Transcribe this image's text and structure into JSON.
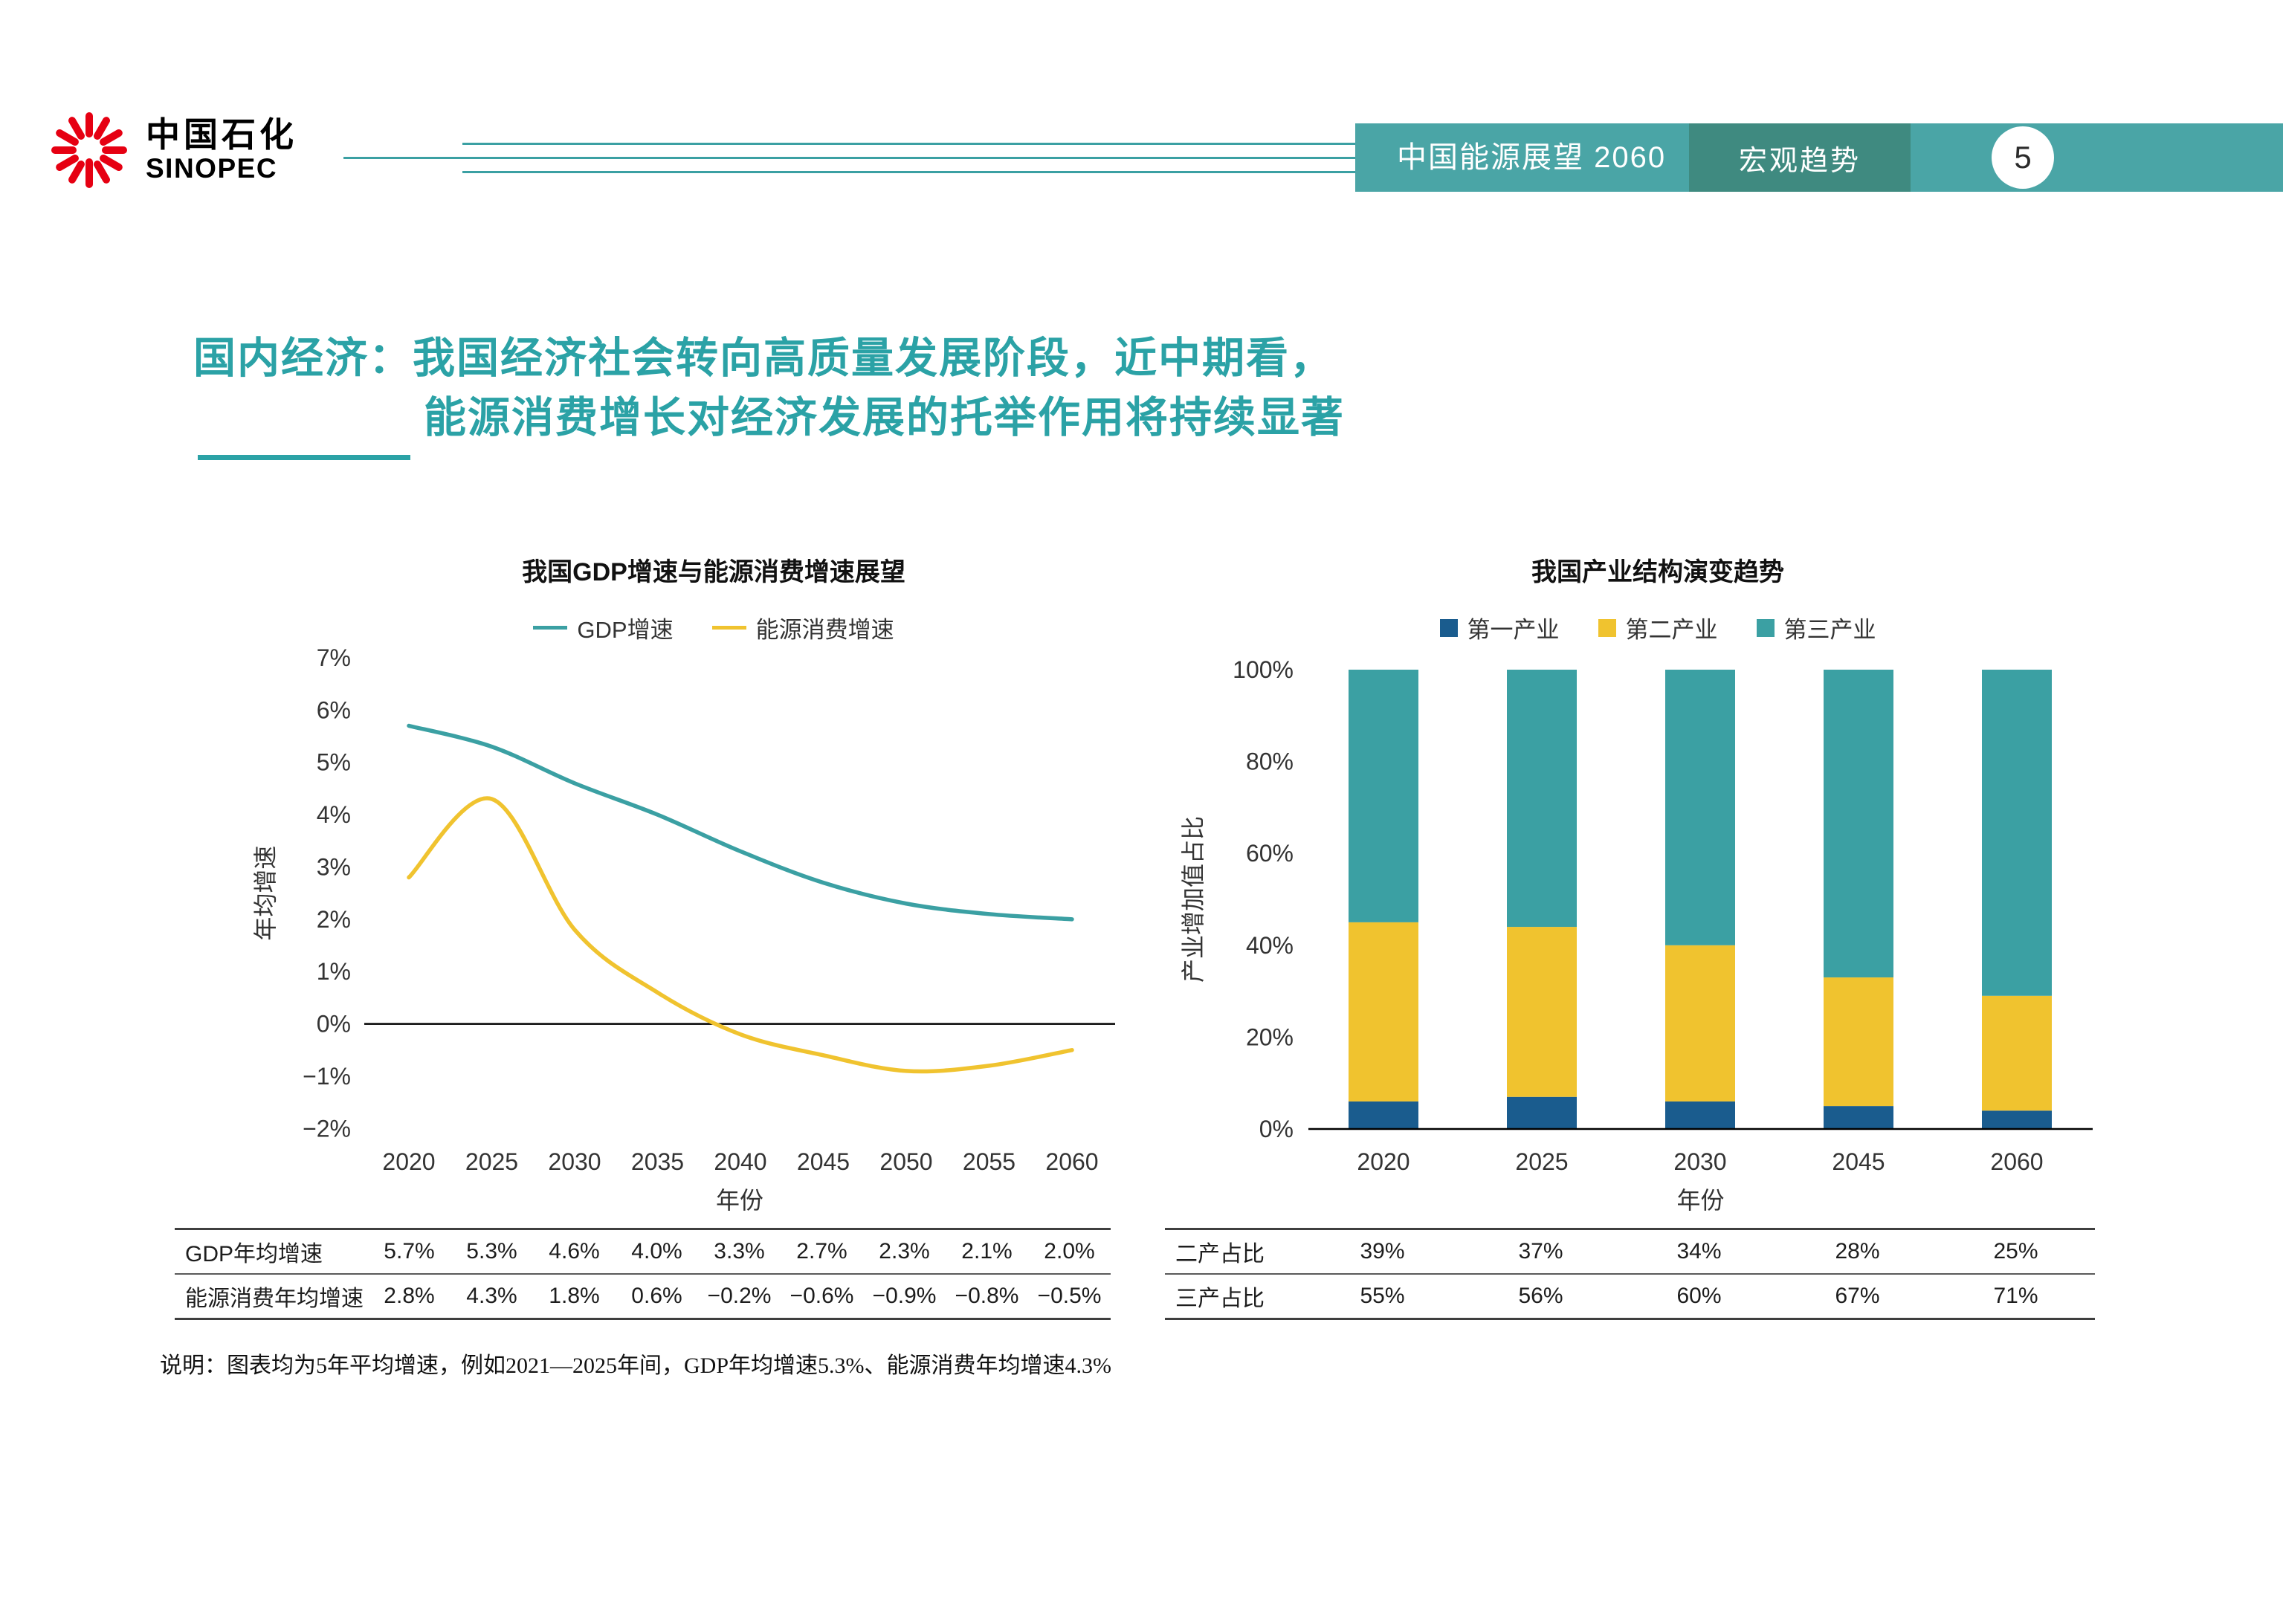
{
  "header": {
    "logo": {
      "brand_cn": "中国石化",
      "brand_en": "SINOPEC"
    },
    "band_title": "中国能源展望 2060",
    "section_label": "宏观趋势",
    "page_number": "5"
  },
  "title": {
    "line1": "国内经济：我国经济社会转向高质量发展阶段，近中期看，",
    "line2": "能源消费增长对经济发展的托举作用将持续显著"
  },
  "colors": {
    "title_teal": "#2BA2A6",
    "band_teal": "#4AA5A6",
    "section_green": "#3F8A80",
    "line_teal": "#3BA0A3",
    "yellow": "#F0C32F",
    "dark_blue": "#1A5C8E",
    "logo_red": "#E60012"
  },
  "chart_data": [
    {
      "type": "line",
      "title": "我国GDP增速与能源消费增速展望",
      "xlabel": "年份",
      "ylabel": "年均增速",
      "x": [
        2020,
        2025,
        2030,
        2035,
        2040,
        2045,
        2050,
        2055,
        2060
      ],
      "ylim": [
        -2,
        7
      ],
      "ytick_step": 1,
      "grid": false,
      "legend_position": "top",
      "series": [
        {
          "name": "GDP增速",
          "color": "#3BA0A3",
          "values": [
            5.7,
            5.3,
            4.6,
            4.0,
            3.3,
            2.7,
            2.3,
            2.1,
            2.0
          ]
        },
        {
          "name": "能源消费增速",
          "color": "#F0C32F",
          "values": [
            2.8,
            4.3,
            1.8,
            0.6,
            -0.2,
            -0.6,
            -0.9,
            -0.8,
            -0.5
          ]
        }
      ]
    },
    {
      "type": "bar",
      "stacked": true,
      "title": "我国产业结构演变趋势",
      "xlabel": "年份",
      "ylabel": "产业增加值占比",
      "categories": [
        "2020",
        "2025",
        "2030",
        "2045",
        "2060"
      ],
      "ylim": [
        0,
        100
      ],
      "ytick_step": 20,
      "grid": false,
      "legend_position": "top",
      "series": [
        {
          "name": "第一产业",
          "color": "#1A5C8E",
          "values": [
            6,
            7,
            6,
            5,
            4
          ]
        },
        {
          "name": "第二产业",
          "color": "#F0C32F",
          "values": [
            39,
            37,
            34,
            28,
            25
          ]
        },
        {
          "name": "第三产业",
          "color": "#3BA0A3",
          "values": [
            55,
            56,
            60,
            67,
            71
          ]
        }
      ]
    }
  ],
  "left_table": {
    "rows": [
      {
        "label": "GDP年均增速",
        "values": [
          "5.7%",
          "5.3%",
          "4.6%",
          "4.0%",
          "3.3%",
          "2.7%",
          "2.3%",
          "2.1%",
          "2.0%"
        ]
      },
      {
        "label": "能源消费年均增速",
        "values": [
          "2.8%",
          "4.3%",
          "1.8%",
          "0.6%",
          "−0.2%",
          "−0.6%",
          "−0.9%",
          "−0.8%",
          "−0.5%"
        ]
      }
    ]
  },
  "right_table": {
    "rows": [
      {
        "label": "二产占比",
        "values": [
          "39%",
          "37%",
          "34%",
          "28%",
          "25%"
        ]
      },
      {
        "label": "三产占比",
        "values": [
          "55%",
          "56%",
          "60%",
          "67%",
          "71%"
        ]
      }
    ]
  },
  "footnote": "说明：图表均为5年平均增速，例如2021—2025年间，GDP年均增速5.3%、能源消费年均增速4.3%"
}
